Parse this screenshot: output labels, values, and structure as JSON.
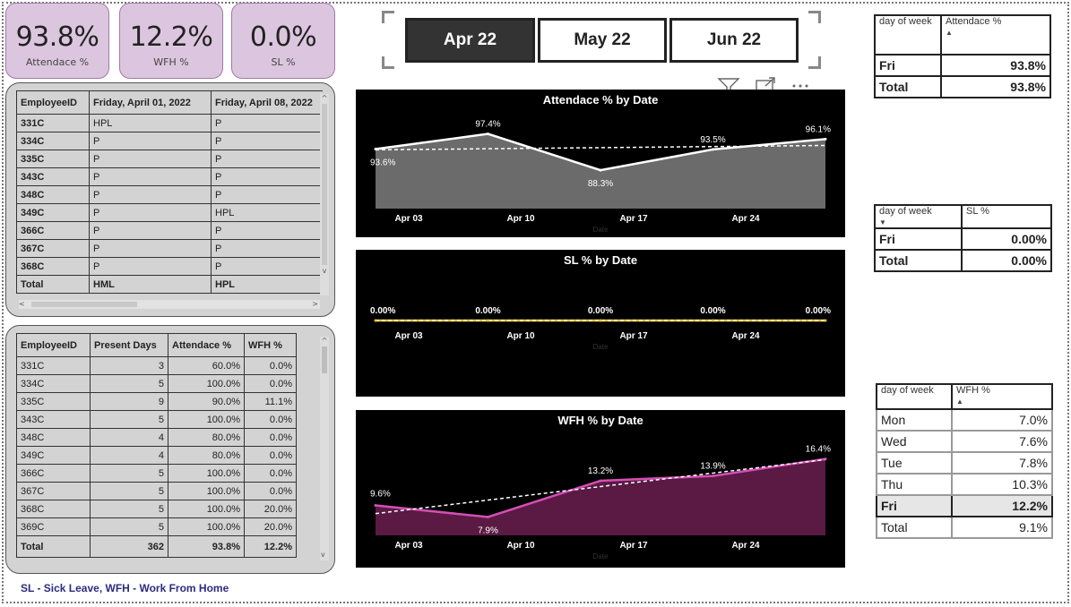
{
  "kpis": [
    {
      "value": "93.8%",
      "label": "Attendace %"
    },
    {
      "value": "12.2%",
      "label": "WFH %"
    },
    {
      "value": "0.0%",
      "label": "SL %"
    }
  ],
  "slicer": {
    "options": [
      "Apr 22",
      "May 22",
      "Jun 22"
    ],
    "selected": "Apr 22"
  },
  "matrix1": {
    "headers": [
      "EmployeeID",
      "Friday, April 01, 2022",
      "Friday, April 08, 2022"
    ],
    "rows": [
      [
        "331C",
        "HPL",
        "P"
      ],
      [
        "334C",
        "P",
        "P"
      ],
      [
        "335C",
        "P",
        "P"
      ],
      [
        "343C",
        "P",
        "P"
      ],
      [
        "348C",
        "P",
        "P"
      ],
      [
        "349C",
        "P",
        "HPL"
      ],
      [
        "366C",
        "P",
        "P"
      ],
      [
        "367C",
        "P",
        "P"
      ],
      [
        "368C",
        "P",
        "P"
      ]
    ],
    "total": [
      "Total",
      "HML",
      "HPL"
    ]
  },
  "matrix2": {
    "headers": [
      "EmployeeID",
      "Present Days",
      "Attendace %",
      "WFH %"
    ],
    "rows": [
      [
        "331C",
        "3",
        "60.0%",
        "0.0%"
      ],
      [
        "334C",
        "5",
        "100.0%",
        "0.0%"
      ],
      [
        "335C",
        "9",
        "90.0%",
        "11.1%"
      ],
      [
        "343C",
        "5",
        "100.0%",
        "0.0%"
      ],
      [
        "348C",
        "4",
        "80.0%",
        "0.0%"
      ],
      [
        "349C",
        "4",
        "80.0%",
        "0.0%"
      ],
      [
        "366C",
        "5",
        "100.0%",
        "0.0%"
      ],
      [
        "367C",
        "5",
        "100.0%",
        "0.0%"
      ],
      [
        "368C",
        "5",
        "100.0%",
        "20.0%"
      ],
      [
        "369C",
        "5",
        "100.0%",
        "20.0%"
      ]
    ],
    "total": [
      "Total",
      "362",
      "93.8%",
      "12.2%"
    ]
  },
  "chart_data": [
    {
      "type": "area",
      "title": "Attendace % by Date",
      "xlabel": "Date",
      "x": [
        "Apr 01",
        "Apr 08",
        "Apr 15",
        "Apr 22",
        "Apr 29"
      ],
      "xticks": [
        "Apr 03",
        "Apr 10",
        "Apr 17",
        "Apr 24"
      ],
      "values": [
        93.6,
        97.4,
        88.3,
        93.5,
        96.1
      ],
      "labels": [
        "93.6%",
        "97.4%",
        "88.3%",
        "93.5%",
        "96.1%"
      ],
      "ylim": [
        80,
        100
      ],
      "trend": [
        93.4,
        94.5
      ],
      "line_color": "#ffffff",
      "fill_color": "#6b6b6b"
    },
    {
      "type": "line",
      "title": "SL % by Date",
      "xlabel": "Date",
      "x": [
        "Apr 01",
        "Apr 08",
        "Apr 15",
        "Apr 22",
        "Apr 29"
      ],
      "xticks": [
        "Apr 03",
        "Apr 10",
        "Apr 17",
        "Apr 24"
      ],
      "values": [
        0,
        0,
        0,
        0,
        0
      ],
      "labels": [
        "0.00%",
        "0.00%",
        "0.00%",
        "0.00%",
        "0.00%"
      ],
      "ylim": [
        0,
        1
      ],
      "trend": [
        0,
        0
      ],
      "line_color": "#f0c419",
      "fill_color": "none"
    },
    {
      "type": "area",
      "title": "WFH % by Date",
      "xlabel": "Date",
      "x": [
        "Apr 01",
        "Apr 08",
        "Apr 15",
        "Apr 22",
        "Apr 29"
      ],
      "xticks": [
        "Apr 03",
        "Apr 10",
        "Apr 17",
        "Apr 24"
      ],
      "values": [
        9.6,
        7.9,
        13.2,
        13.9,
        16.4
      ],
      "labels": [
        "9.6%",
        "7.9%",
        "13.2%",
        "13.9%",
        "16.4%"
      ],
      "ylim": [
        6,
        17
      ],
      "trend": [
        8.4,
        16.3
      ],
      "line_color": "#d64fb4",
      "fill_color": "#5a1a44"
    }
  ],
  "attend_table": {
    "headers": [
      "day of week",
      "Attendace %"
    ],
    "rows": [
      [
        "Fri",
        "93.8%"
      ]
    ],
    "total": [
      "Total",
      "93.8%"
    ]
  },
  "sl_table": {
    "headers": [
      "day of week",
      "SL %"
    ],
    "rows": [
      [
        "Fri",
        "0.00%"
      ]
    ],
    "total": [
      "Total",
      "0.00%"
    ]
  },
  "wfh_table": {
    "headers": [
      "day of week",
      "WFH %"
    ],
    "rows": [
      [
        "Mon",
        "7.0%"
      ],
      [
        "Wed",
        "7.6%"
      ],
      [
        "Tue",
        "7.8%"
      ],
      [
        "Thu",
        "10.3%"
      ],
      [
        "Fri",
        "12.2%"
      ]
    ],
    "total": [
      "Total",
      "9.1%"
    ]
  },
  "footnote": "SL - Sick Leave, WFH - Work From Home",
  "colors": {
    "kpi_bg": "#dcc6df",
    "panel_bg": "#d3d3d3",
    "chart_bg": "#000000"
  }
}
